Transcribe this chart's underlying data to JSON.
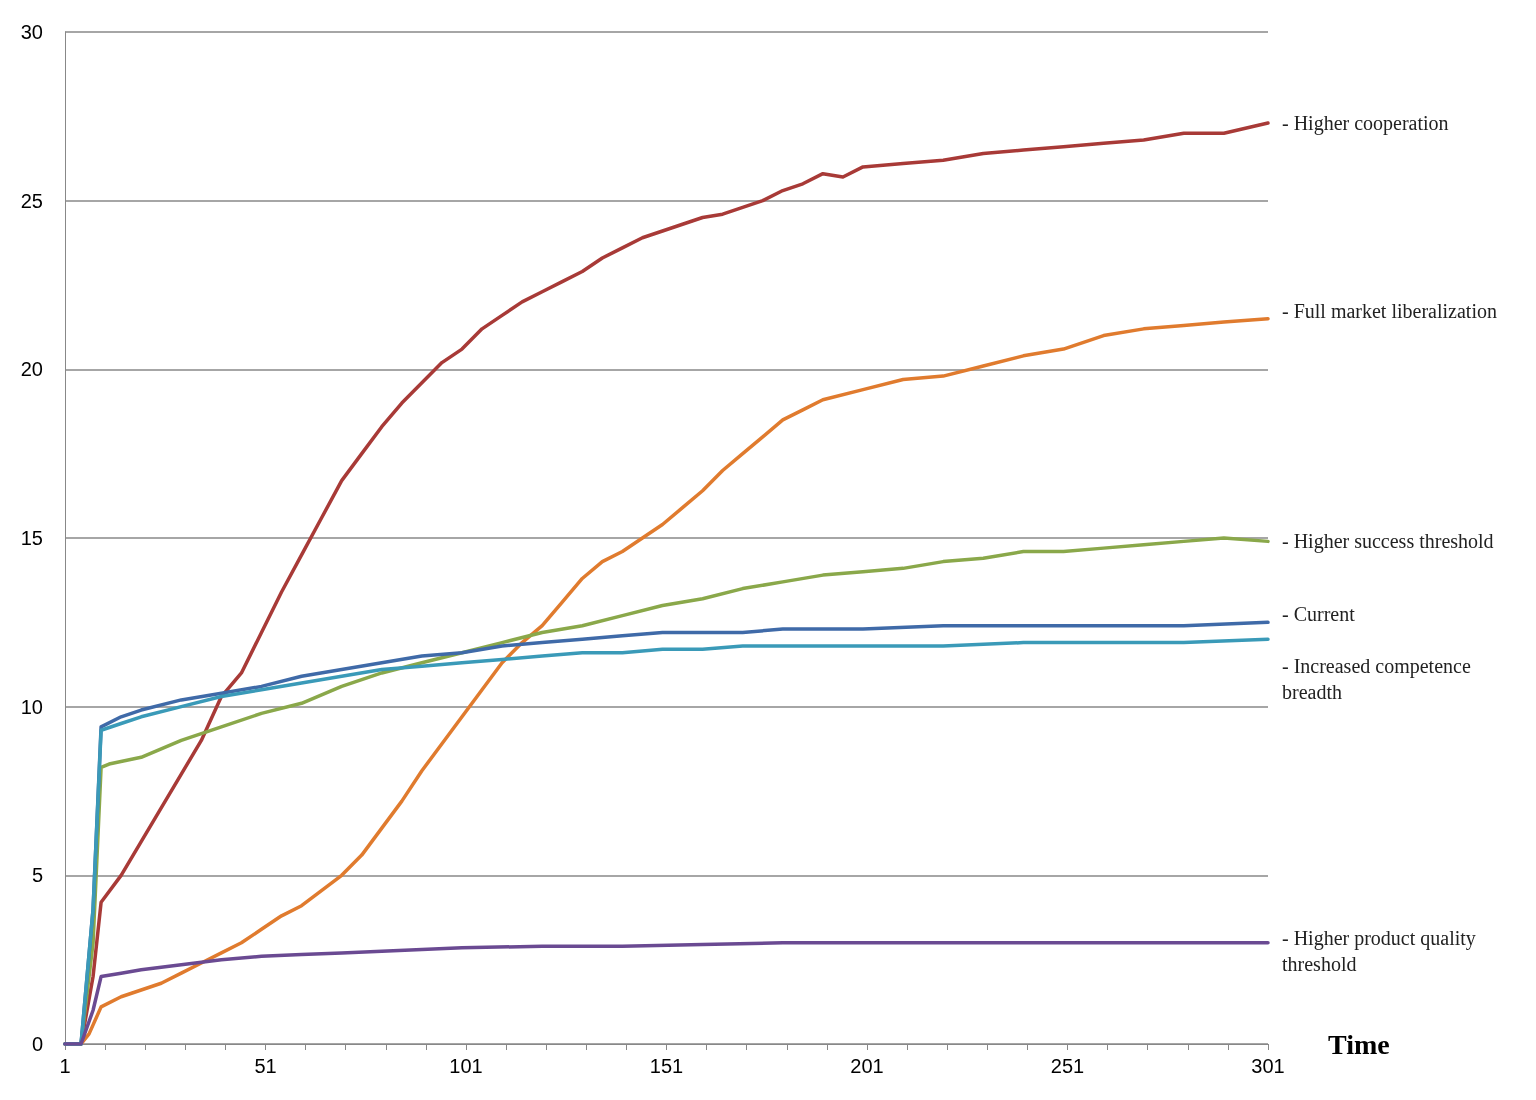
{
  "chart_data": {
    "type": "line",
    "xlabel": "Time",
    "xlim": [
      1,
      301
    ],
    "ylim": [
      0,
      30
    ],
    "xticks": [
      1,
      {
        "value": 11,
        "label": null
      },
      {
        "value": 21,
        "label": null
      },
      {
        "value": 31,
        "label": null
      },
      {
        "value": 41,
        "label": null
      },
      51,
      {
        "value": 61,
        "label": null
      },
      {
        "value": 71,
        "label": null
      },
      {
        "value": 81,
        "label": null
      },
      {
        "value": 91,
        "label": null
      },
      101,
      {
        "value": 111,
        "label": null
      },
      {
        "value": 121,
        "label": null
      },
      {
        "value": 131,
        "label": null
      },
      {
        "value": 141,
        "label": null
      },
      151,
      {
        "value": 161,
        "label": null
      },
      {
        "value": 171,
        "label": null
      },
      {
        "value": 181,
        "label": null
      },
      {
        "value": 191,
        "label": null
      },
      201,
      {
        "value": 211,
        "label": null
      },
      {
        "value": 221,
        "label": null
      },
      {
        "value": 231,
        "label": null
      },
      {
        "value": 241,
        "label": null
      },
      251,
      {
        "value": 261,
        "label": null
      },
      {
        "value": 271,
        "label": null
      },
      {
        "value": 281,
        "label": null
      },
      {
        "value": 291,
        "label": null
      },
      301
    ],
    "yticks": [
      0,
      5,
      10,
      15,
      20,
      25,
      30
    ],
    "grid": "y",
    "legend": false,
    "marker": "none",
    "line_style": "solid",
    "series": [
      {
        "name": "- Higher cooperation",
        "color": "#a83a37",
        "x": [
          1,
          5,
          8,
          10,
          15,
          20,
          25,
          30,
          35,
          40,
          45,
          50,
          55,
          60,
          65,
          70,
          75,
          80,
          85,
          90,
          95,
          100,
          105,
          110,
          115,
          120,
          125,
          130,
          135,
          140,
          145,
          150,
          155,
          160,
          165,
          170,
          175,
          180,
          185,
          190,
          195,
          200,
          210,
          220,
          230,
          240,
          250,
          260,
          270,
          280,
          290,
          301
        ],
        "values": [
          0,
          0,
          2,
          4.2,
          5,
          6,
          7,
          8,
          9,
          10.3,
          11,
          12.2,
          13.4,
          14.5,
          15.6,
          16.7,
          17.5,
          18.3,
          19,
          19.6,
          20.2,
          20.6,
          21.2,
          21.6,
          22,
          22.3,
          22.6,
          22.9,
          23.3,
          23.6,
          23.9,
          24.1,
          24.3,
          24.5,
          24.6,
          24.8,
          25,
          25.3,
          25.5,
          25.8,
          25.7,
          26,
          26.1,
          26.2,
          26.4,
          26.5,
          26.6,
          26.7,
          26.8,
          27,
          27,
          27.3
        ]
      },
      {
        "name": "- Full market liberalization",
        "color": "#e07b2e",
        "x": [
          1,
          5,
          7,
          10,
          15,
          20,
          25,
          30,
          35,
          40,
          45,
          50,
          55,
          60,
          70,
          75,
          80,
          85,
          90,
          95,
          100,
          105,
          110,
          115,
          120,
          125,
          130,
          135,
          140,
          145,
          150,
          155,
          160,
          165,
          170,
          175,
          180,
          185,
          190,
          200,
          210,
          220,
          230,
          240,
          250,
          260,
          270,
          280,
          290,
          301
        ],
        "values": [
          0,
          0,
          0.3,
          1.1,
          1.4,
          1.6,
          1.8,
          2.1,
          2.4,
          2.7,
          3,
          3.4,
          3.8,
          4.1,
          5,
          5.6,
          6.4,
          7.2,
          8.1,
          8.9,
          9.7,
          10.5,
          11.3,
          11.9,
          12.4,
          13.1,
          13.8,
          14.3,
          14.6,
          15,
          15.4,
          15.9,
          16.4,
          17,
          17.5,
          18,
          18.5,
          18.8,
          19.1,
          19.4,
          19.7,
          19.8,
          20.1,
          20.4,
          20.6,
          21,
          21.2,
          21.3,
          21.4,
          21.5
        ]
      },
      {
        "name": "- Higher success threshold",
        "color": "#8aa84a",
        "x": [
          1,
          5,
          8,
          10,
          12,
          20,
          30,
          40,
          50,
          60,
          70,
          80,
          90,
          100,
          110,
          120,
          130,
          140,
          150,
          160,
          170,
          180,
          190,
          200,
          210,
          220,
          230,
          240,
          250,
          260,
          270,
          280,
          290,
          301
        ],
        "values": [
          0,
          0,
          3,
          8.2,
          8.3,
          8.5,
          9,
          9.4,
          9.8,
          10.1,
          10.6,
          11,
          11.3,
          11.6,
          11.9,
          12.2,
          12.4,
          12.7,
          13,
          13.2,
          13.5,
          13.7,
          13.9,
          14,
          14.1,
          14.3,
          14.4,
          14.6,
          14.6,
          14.7,
          14.8,
          14.9,
          15,
          14.9
        ]
      },
      {
        "name": "- Current",
        "color": "#3f6aa8",
        "x": [
          1,
          5,
          8,
          10,
          15,
          20,
          30,
          40,
          50,
          60,
          70,
          80,
          90,
          100,
          110,
          120,
          130,
          140,
          150,
          160,
          170,
          180,
          190,
          200,
          220,
          240,
          260,
          280,
          301
        ],
        "values": [
          0,
          0,
          4,
          9.4,
          9.7,
          9.9,
          10.2,
          10.4,
          10.6,
          10.9,
          11.1,
          11.3,
          11.5,
          11.6,
          11.8,
          11.9,
          12,
          12.1,
          12.2,
          12.2,
          12.2,
          12.3,
          12.3,
          12.3,
          12.4,
          12.4,
          12.4,
          12.4,
          12.5
        ]
      },
      {
        "name": "- Increased competence breadth",
        "color": "#3a9ab8",
        "x": [
          1,
          5,
          8,
          10,
          15,
          20,
          30,
          40,
          50,
          60,
          70,
          80,
          90,
          100,
          110,
          120,
          130,
          140,
          150,
          160,
          170,
          180,
          200,
          220,
          240,
          260,
          280,
          301
        ],
        "values": [
          0,
          0,
          4,
          9.3,
          9.5,
          9.7,
          10,
          10.3,
          10.5,
          10.7,
          10.9,
          11.1,
          11.2,
          11.3,
          11.4,
          11.5,
          11.6,
          11.6,
          11.7,
          11.7,
          11.8,
          11.8,
          11.8,
          11.8,
          11.9,
          11.9,
          11.9,
          12
        ]
      },
      {
        "name": "- Higher product quality threshold",
        "color": "#6a4a92",
        "x": [
          1,
          5,
          8,
          10,
          15,
          20,
          30,
          40,
          50,
          60,
          70,
          80,
          90,
          100,
          120,
          140,
          160,
          180,
          200,
          240,
          280,
          301
        ],
        "values": [
          0,
          0,
          1,
          2,
          2.1,
          2.2,
          2.35,
          2.5,
          2.6,
          2.65,
          2.7,
          2.75,
          2.8,
          2.85,
          2.9,
          2.9,
          2.95,
          3,
          3,
          3,
          3,
          3
        ]
      }
    ]
  }
}
